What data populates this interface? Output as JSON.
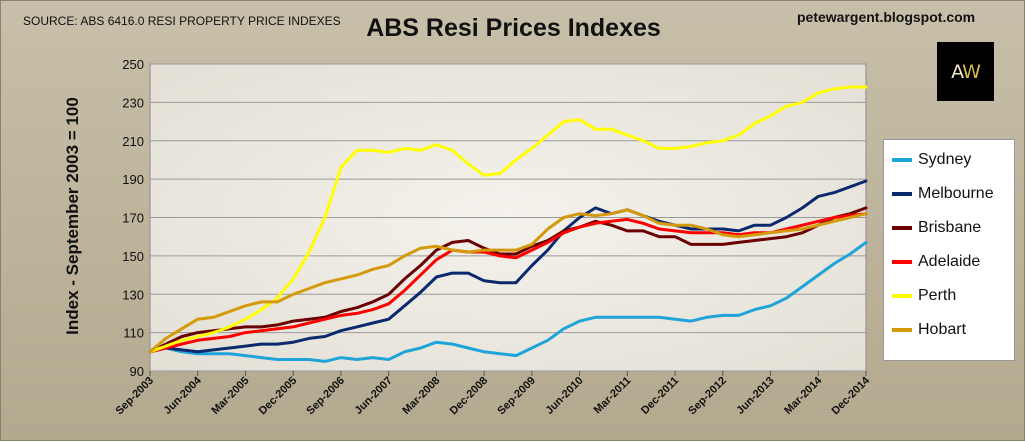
{
  "source_note": "SOURCE: ABS 6416.0 RESI PROPERTY PRICE INDEXES",
  "blog": "petewargent.blogspot.com",
  "logo": {
    "left": "A",
    "right": "W"
  },
  "chart_data": {
    "type": "line",
    "title": "ABS Resi Prices Indexes",
    "xlabel": "",
    "ylabel": "Index - September 2003 = 100",
    "ylim": [
      90,
      250
    ],
    "yticks": [
      90,
      110,
      130,
      150,
      170,
      190,
      210,
      230,
      250
    ],
    "grid": true,
    "legend_position": "right",
    "x_tick_labels": [
      "Sep-2003",
      "Jun-2004",
      "Mar-2005",
      "Dec-2005",
      "Sep-2006",
      "Jun-2007",
      "Mar-2008",
      "Dec-2008",
      "Sep-2009",
      "Jun-2010",
      "Mar-2011",
      "Dec-2011",
      "Sep-2012",
      "Jun-2013",
      "Mar-2014",
      "Dec-2014"
    ],
    "x": [
      "Sep-2003",
      "Dec-2003",
      "Mar-2004",
      "Jun-2004",
      "Sep-2004",
      "Dec-2004",
      "Mar-2005",
      "Jun-2005",
      "Sep-2005",
      "Dec-2005",
      "Mar-2006",
      "Jun-2006",
      "Sep-2006",
      "Dec-2006",
      "Mar-2007",
      "Jun-2007",
      "Sep-2007",
      "Dec-2007",
      "Mar-2008",
      "Jun-2008",
      "Sep-2008",
      "Dec-2008",
      "Mar-2009",
      "Jun-2009",
      "Sep-2009",
      "Dec-2009",
      "Mar-2010",
      "Jun-2010",
      "Sep-2010",
      "Dec-2010",
      "Mar-2011",
      "Jun-2011",
      "Sep-2011",
      "Dec-2011",
      "Mar-2012",
      "Jun-2012",
      "Sep-2012",
      "Dec-2012",
      "Mar-2013",
      "Jun-2013",
      "Sep-2013",
      "Dec-2013",
      "Mar-2014",
      "Jun-2014",
      "Sep-2014",
      "Dec-2014"
    ],
    "series": [
      {
        "name": "Sydney",
        "color": "#1ea4d8",
        "values": [
          100,
          102,
          100,
          99,
          99,
          99,
          98,
          97,
          96,
          96,
          96,
          95,
          97,
          96,
          97,
          96,
          100,
          102,
          105,
          104,
          102,
          100,
          99,
          98,
          102,
          106,
          112,
          116,
          118,
          118,
          118,
          118,
          118,
          117,
          116,
          118,
          119,
          119,
          122,
          124,
          128,
          134,
          140,
          146,
          151,
          157
        ]
      },
      {
        "name": "Melbourne",
        "color": "#0b2a6e",
        "values": [
          100,
          102,
          101,
          100,
          101,
          102,
          103,
          104,
          104,
          105,
          107,
          108,
          111,
          113,
          115,
          117,
          124,
          131,
          139,
          141,
          141,
          137,
          136,
          136,
          145,
          153,
          163,
          170,
          175,
          172,
          174,
          171,
          168,
          166,
          164,
          164,
          164,
          163,
          166,
          166,
          170,
          175,
          181,
          183,
          186,
          189
        ]
      },
      {
        "name": "Brisbane",
        "color": "#6b0000",
        "values": [
          100,
          104,
          108,
          110,
          111,
          112,
          113,
          113,
          114,
          116,
          117,
          118,
          121,
          123,
          126,
          130,
          138,
          145,
          153,
          157,
          158,
          154,
          151,
          151,
          155,
          158,
          163,
          165,
          168,
          166,
          163,
          163,
          160,
          160,
          156,
          156,
          156,
          157,
          158,
          159,
          160,
          162,
          166,
          170,
          172,
          175
        ]
      },
      {
        "name": "Adelaide",
        "color": "#ff0000",
        "values": [
          100,
          102,
          104,
          106,
          107,
          108,
          110,
          111,
          112,
          113,
          115,
          117,
          119,
          120,
          122,
          125,
          132,
          140,
          148,
          153,
          152,
          152,
          150,
          149,
          153,
          157,
          162,
          165,
          167,
          168,
          169,
          167,
          164,
          163,
          162,
          162,
          162,
          161,
          162,
          162,
          164,
          166,
          168,
          170,
          171,
          172
        ]
      },
      {
        "name": "Perth",
        "color": "#ffff00",
        "values": [
          100,
          103,
          106,
          108,
          110,
          113,
          117,
          122,
          128,
          138,
          152,
          170,
          196,
          205,
          205,
          204,
          206,
          205,
          208,
          205,
          198,
          192,
          193,
          200,
          206,
          213,
          220,
          221,
          216,
          216,
          213,
          210,
          206,
          206,
          207,
          209,
          210,
          213,
          219,
          223,
          228,
          230,
          235,
          237,
          238,
          238
        ]
      },
      {
        "name": "Hobart",
        "color": "#d49a0a",
        "values": [
          100,
          107,
          112,
          117,
          118,
          121,
          124,
          126,
          126,
          130,
          133,
          136,
          138,
          140,
          143,
          145,
          150,
          154,
          155,
          153,
          152,
          153,
          153,
          153,
          156,
          164,
          170,
          172,
          171,
          172,
          174,
          171,
          167,
          166,
          166,
          164,
          161,
          160,
          161,
          162,
          163,
          164,
          166,
          168,
          170,
          172
        ]
      }
    ]
  }
}
